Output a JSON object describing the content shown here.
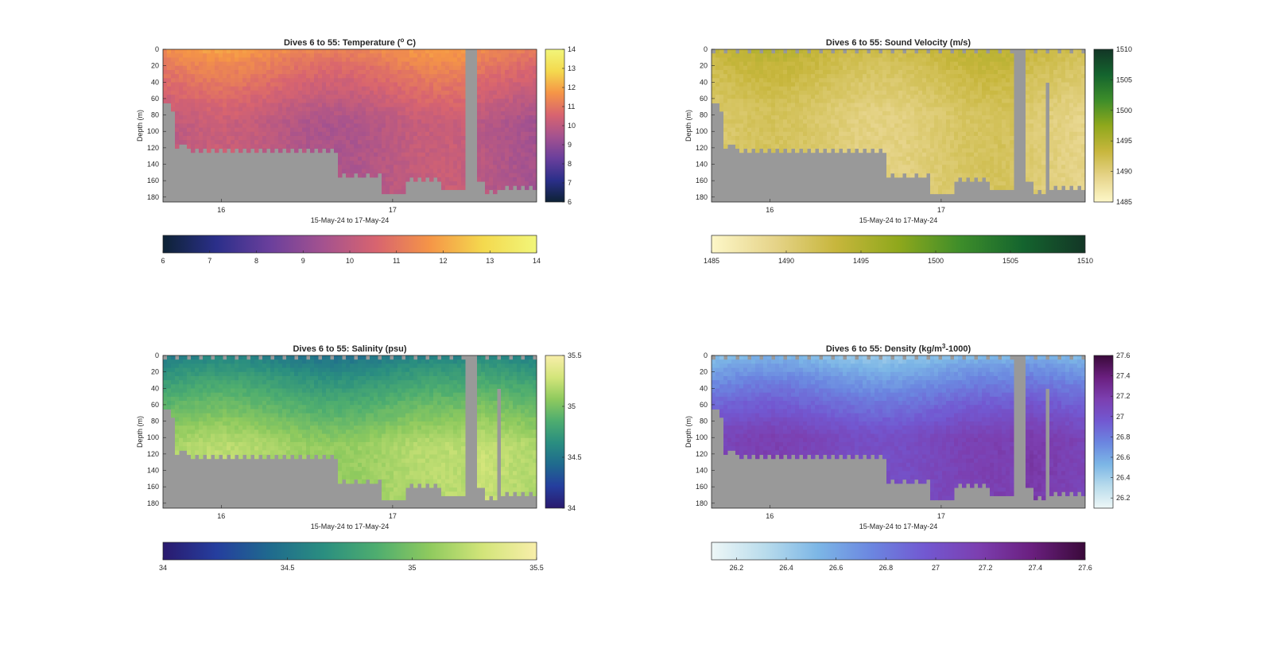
{
  "figure": {
    "background": "#ffffff"
  },
  "chart_data": [
    {
      "type": "heatmap",
      "id": "temperature",
      "title": "Dives 6 to 55: Temperature (",
      "title_sup": "o",
      "title_after": " C)",
      "xlabel": "15-May-24 to 17-May-24",
      "ylabel": "Depth (m)",
      "x_ticks": [
        "16",
        "17"
      ],
      "xlim_days": [
        15.66,
        17.84
      ],
      "x_tick_values": [
        16,
        17
      ],
      "y_ticks": [
        "0",
        "20",
        "40",
        "60",
        "80",
        "100",
        "120",
        "140",
        "160",
        "180"
      ],
      "ylim": [
        0,
        186
      ],
      "y_reversed": true,
      "colorbar_side_ticks": [
        "6",
        "7",
        "8",
        "9",
        "10",
        "11",
        "12",
        "13",
        "14"
      ],
      "colorbar_bottom_ticks": [
        "6",
        "7",
        "8",
        "9",
        "10",
        "11",
        "12",
        "13",
        "14"
      ],
      "clim": [
        6,
        14
      ],
      "colormap": [
        "#0d2235",
        "#2b2f8a",
        "#6a3f9c",
        "#a4528f",
        "#d8646f",
        "#f59547",
        "#f4d94e",
        "#f1f67a"
      ],
      "surface_value": 11.6,
      "bottom_value": 9.9,
      "gradient_depth": 90,
      "nodata_color": "#999999"
    },
    {
      "type": "heatmap",
      "id": "sound-velocity",
      "title": "Dives 6 to 55: Sound Velocity (m/s)",
      "xlabel": "15-May-24 to 17-May-24",
      "ylabel": "Depth (m)",
      "x_ticks": [
        "16",
        "17"
      ],
      "xlim_days": [
        15.66,
        17.84
      ],
      "x_tick_values": [
        16,
        17
      ],
      "y_ticks": [
        "0",
        "20",
        "40",
        "60",
        "80",
        "100",
        "120",
        "140",
        "160",
        "180"
      ],
      "ylim": [
        0,
        186
      ],
      "y_reversed": true,
      "colorbar_side_ticks": [
        "1485",
        "1490",
        "1495",
        "1500",
        "1505",
        "1510"
      ],
      "colorbar_bottom_ticks": [
        "1485",
        "1490",
        "1495",
        "1500",
        "1505",
        "1510"
      ],
      "clim": [
        1485,
        1510
      ],
      "colormap": [
        "#fdf7c8",
        "#e6d48a",
        "#c7b63c",
        "#8fa81c",
        "#3d8d2a",
        "#14642e",
        "#133626"
      ],
      "surface_value": 1493.5,
      "bottom_value": 1490.6,
      "gradient_depth": 80,
      "nodata_color": "#999999"
    },
    {
      "type": "heatmap",
      "id": "salinity",
      "title": "Dives 6 to 55: Salinity (psu)",
      "xlabel": "15-May-24 to 17-May-24",
      "ylabel": "Depth (m)",
      "x_ticks": [
        "16",
        "17"
      ],
      "xlim_days": [
        15.66,
        17.84
      ],
      "x_tick_values": [
        16,
        17
      ],
      "y_ticks": [
        "0",
        "20",
        "40",
        "60",
        "80",
        "100",
        "120",
        "140",
        "160",
        "180"
      ],
      "ylim": [
        0,
        186
      ],
      "y_reversed": true,
      "colorbar_side_ticks": [
        "34",
        "34.5",
        "35",
        "35.5"
      ],
      "colorbar_bottom_ticks": [
        "34",
        "34.5",
        "35",
        "35.5"
      ],
      "clim": [
        34,
        35.5
      ],
      "colormap": [
        "#2a1a6e",
        "#253e9e",
        "#1f6a8e",
        "#2a8e80",
        "#4ead6f",
        "#8fca5e",
        "#d3e57a",
        "#f8eeaa"
      ],
      "surface_value": 34.5,
      "bottom_value": 35.15,
      "gradient_depth": 110,
      "nodata_color": "#999999"
    },
    {
      "type": "heatmap",
      "id": "density",
      "title": "Dives 6 to 55: Density (kg/m",
      "title_sup": "3",
      "title_after": "-1000)",
      "xlabel": "15-May-24 to 17-May-24",
      "ylabel": "Depth (m)",
      "x_ticks": [
        "16",
        "17"
      ],
      "xlim_days": [
        15.66,
        17.84
      ],
      "x_tick_values": [
        16,
        17
      ],
      "y_ticks": [
        "0",
        "20",
        "40",
        "60",
        "80",
        "100",
        "120",
        "140",
        "160",
        "180"
      ],
      "ylim": [
        0,
        186
      ],
      "y_reversed": true,
      "colorbar_side_ticks": [
        "26.2",
        "26.4",
        "26.6",
        "26.8",
        "27",
        "27.2",
        "27.4",
        "27.6"
      ],
      "colorbar_bottom_ticks": [
        "26.2",
        "26.4",
        "26.6",
        "26.8",
        "27",
        "27.2",
        "27.4",
        "27.6"
      ],
      "clim": [
        26.1,
        27.6
      ],
      "colormap": [
        "#eef7f7",
        "#b9dcec",
        "#7cb6e6",
        "#6b86e0",
        "#7258d1",
        "#7c3fb0",
        "#6a1f7f",
        "#3a0a3a"
      ],
      "surface_value": 26.45,
      "bottom_value": 27.1,
      "gradient_depth": 100,
      "nodata_color": "#999999"
    }
  ]
}
